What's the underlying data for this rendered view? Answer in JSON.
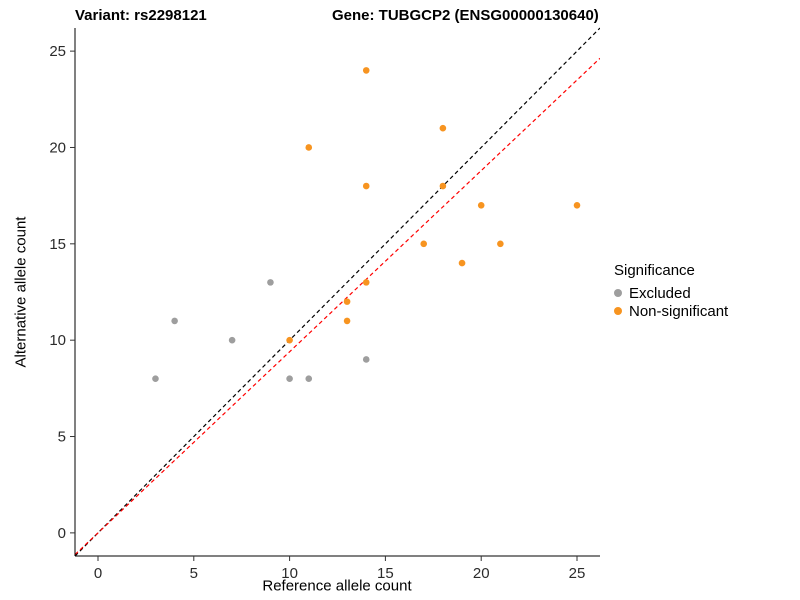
{
  "titles": {
    "left": "Variant: rs2298121",
    "right": "Gene: TUBGCP2 (ENSG00000130640)"
  },
  "chart_data": {
    "type": "scatter",
    "xlabel": "Reference allele count",
    "ylabel": "Alternative allele count",
    "xlim": [
      -1.2,
      26.2
    ],
    "ylim": [
      -1.2,
      26.2
    ],
    "ticks": [
      0,
      5,
      10,
      15,
      20,
      25
    ],
    "grid": false,
    "legend": {
      "title": "Significance",
      "position": "right",
      "items": [
        {
          "label": "Excluded",
          "color": "#9e9e9e"
        },
        {
          "label": "Non-significant",
          "color": "#f79420"
        }
      ]
    },
    "series": [
      {
        "name": "Excluded",
        "color": "#9e9e9e",
        "points": [
          [
            3,
            8
          ],
          [
            4,
            11
          ],
          [
            7,
            10
          ],
          [
            9,
            13
          ],
          [
            10,
            8
          ],
          [
            11,
            8
          ],
          [
            14,
            9
          ]
        ]
      },
      {
        "name": "Non-significant",
        "color": "#f79420",
        "points": [
          [
            10,
            10
          ],
          [
            11,
            20
          ],
          [
            13,
            11
          ],
          [
            13,
            12
          ],
          [
            14,
            13
          ],
          [
            14,
            18
          ],
          [
            14,
            24
          ],
          [
            17,
            15
          ],
          [
            18,
            18
          ],
          [
            18,
            21
          ],
          [
            19,
            14
          ],
          [
            20,
            17
          ],
          [
            21,
            15
          ],
          [
            25,
            17
          ]
        ]
      }
    ],
    "lines": [
      {
        "name": "identity",
        "color": "#000000",
        "style": "dashed",
        "slope": 1,
        "intercept": 0
      },
      {
        "name": "expected-ratio",
        "color": "#ff0000",
        "style": "dashed",
        "slope": 0.94,
        "intercept": 0
      }
    ]
  }
}
